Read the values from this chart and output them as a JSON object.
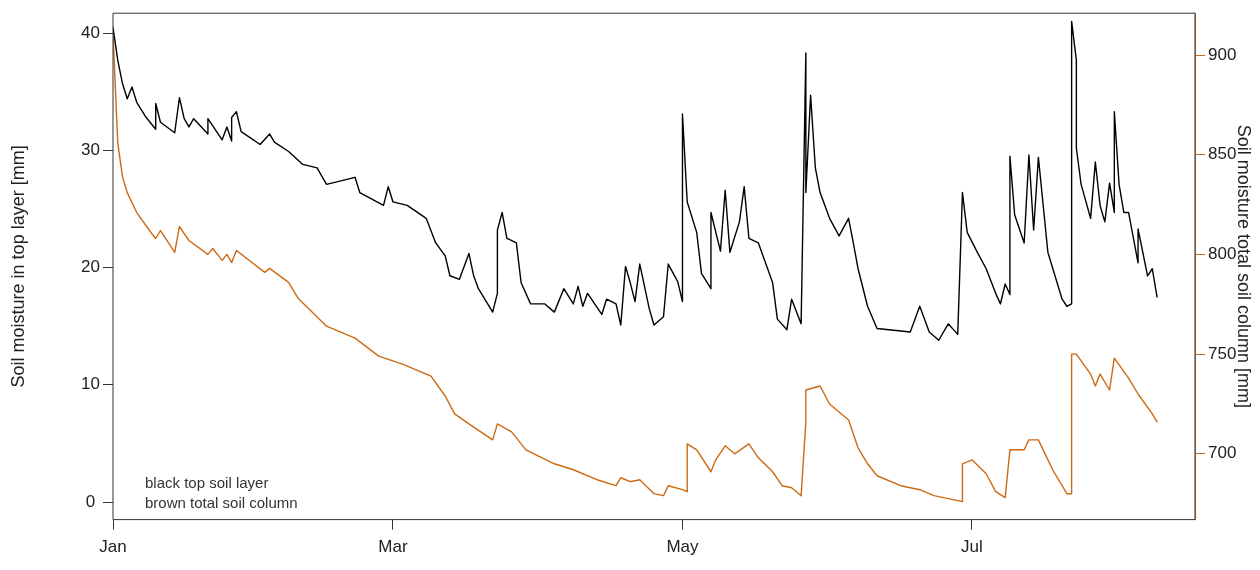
{
  "chart_data": {
    "type": "line",
    "ylabel": "Soil moisture in top layer [mm]",
    "y2label": "Soil moisture total soil column [mm]",
    "xlim": [
      "--01-01",
      "--08-17"
    ],
    "xticks": [
      {
        "value": "--01-01",
        "label": "Jan"
      },
      {
        "value": "--03-01",
        "label": "Mar"
      },
      {
        "value": "--05-01",
        "label": "May"
      },
      {
        "value": "--07-01",
        "label": "Jul"
      }
    ],
    "ylim": [
      -1.5,
      41.7
    ],
    "yticks": [
      0,
      10,
      20,
      30,
      40
    ],
    "y2lim": [
      667,
      921
    ],
    "y2ticks": [
      700,
      750,
      800,
      850,
      900
    ],
    "grid": false,
    "legend": false,
    "marker": "none",
    "line_style": "solid",
    "annotations": [
      "black top soil layer",
      "brown total soil column"
    ],
    "series": [
      {
        "color": "#000000",
        "x": [
          "--01-01",
          "--01-02",
          "--01-03",
          "--01-04",
          "--01-05",
          "--01-06",
          "--01-08",
          "--01-10",
          "--01-10",
          "--01-11",
          "--01-14",
          "--01-15",
          "--01-16",
          "--01-17",
          "--01-18",
          "--01-21",
          "--01-21",
          "--01-24",
          "--01-25",
          "--01-26",
          "--01-26",
          "--01-27",
          "--01-28",
          "--02-01",
          "--02-03",
          "--02-04",
          "--02-07",
          "--02-10",
          "--02-13",
          "--02-15",
          "--02-21",
          "--02-22",
          "--02-27",
          "--02-28",
          "--03-01",
          "--03-04",
          "--03-08",
          "--03-10",
          "--03-12",
          "--03-13",
          "--03-15",
          "--03-17",
          "--03-18",
          "--03-19",
          "--03-22",
          "--03-23",
          "--03-23",
          "--03-24",
          "--03-25",
          "--03-27",
          "--03-28",
          "--03-30",
          "--04-02",
          "--04-04",
          "--04-06",
          "--04-08",
          "--04-09",
          "--04-10",
          "--04-11",
          "--04-14",
          "--04-15",
          "--04-17",
          "--04-18",
          "--04-19",
          "--04-20",
          "--04-21",
          "--04-22",
          "--04-24",
          "--04-25",
          "--04-27",
          "--04-28",
          "--04-30",
          "--05-01",
          "--05-01",
          "--05-02",
          "--05-04",
          "--05-05",
          "--05-07",
          "--05-07",
          "--05-09",
          "--05-10",
          "--05-11",
          "--05-13",
          "--05-14",
          "--05-15",
          "--05-17",
          "--05-20",
          "--05-21",
          "--05-23",
          "--05-24",
          "--05-26",
          "--05-27",
          "--05-27",
          "--05-28",
          "--05-29",
          "--05-30",
          "--06-01",
          "--06-03",
          "--06-05",
          "--06-06",
          "--06-07",
          "--06-09",
          "--06-11",
          "--06-18",
          "--06-20",
          "--06-22",
          "--06-24",
          "--06-26",
          "--06-28",
          "--06-29",
          "--06-30",
          "--07-02",
          "--07-04",
          "--07-06",
          "--07-07",
          "--07-08",
          "--07-09",
          "--07-09",
          "--07-10",
          "--07-12",
          "--07-13",
          "--07-14",
          "--07-15",
          "--07-17",
          "--07-20",
          "--07-21",
          "--07-22",
          "--07-22",
          "--07-23",
          "--07-23",
          "--07-24",
          "--07-26",
          "--07-27",
          "--07-28",
          "--07-29",
          "--07-30",
          "--07-31",
          "--07-31",
          "--08-01",
          "--08-02",
          "--08-03",
          "--08-05",
          "--08-05",
          "--08-07",
          "--08-08",
          "--08-09"
        ],
        "values": [
          40.5,
          37.7,
          35.7,
          34.4,
          35.4,
          34.1,
          32.8,
          31.8,
          34.0,
          32.4,
          31.5,
          34.5,
          32.7,
          32.0,
          32.7,
          31.4,
          32.7,
          30.9,
          32.0,
          30.8,
          32.8,
          33.3,
          31.6,
          30.5,
          31.4,
          30.7,
          29.9,
          28.8,
          28.5,
          27.1,
          27.7,
          26.4,
          25.3,
          26.9,
          25.6,
          25.3,
          24.2,
          22.1,
          21.0,
          19.3,
          19.0,
          21.2,
          19.3,
          18.2,
          16.2,
          17.8,
          23.2,
          24.7,
          22.5,
          22.1,
          18.7,
          16.9,
          16.9,
          16.2,
          18.2,
          16.9,
          18.4,
          16.7,
          17.8,
          16.0,
          17.3,
          16.9,
          15.1,
          20.1,
          18.7,
          17.1,
          20.3,
          16.5,
          15.1,
          15.8,
          20.3,
          18.8,
          17.1,
          33.1,
          25.6,
          23.0,
          19.5,
          18.2,
          24.7,
          21.4,
          26.6,
          21.3,
          23.9,
          26.9,
          22.5,
          22.1,
          18.7,
          15.6,
          14.7,
          17.3,
          15.2,
          38.3,
          26.4,
          34.7,
          28.5,
          26.4,
          24.2,
          22.7,
          24.2,
          22.1,
          19.9,
          16.7,
          14.8,
          14.5,
          16.7,
          14.5,
          13.8,
          15.2,
          14.3,
          26.4,
          23.0,
          21.4,
          19.9,
          17.8,
          16.9,
          18.6,
          17.7,
          29.5,
          24.5,
          22.1,
          29.6,
          23.2,
          29.4,
          21.3,
          17.3,
          16.7,
          16.9,
          41.0,
          37.7,
          30.2,
          27.1,
          24.2,
          29.0,
          25.3,
          23.9,
          27.2,
          24.7,
          33.3,
          27.1,
          24.7,
          24.7,
          20.4,
          23.3,
          19.3,
          19.9,
          17.5
        ]
      },
      {
        "color": "#cc6a14",
        "axis": "y2",
        "x": [
          "--01-01",
          "--01-02",
          "--01-03",
          "--01-04",
          "--01-06",
          "--01-09",
          "--01-10",
          "--01-11",
          "--01-14",
          "--01-15",
          "--01-17",
          "--01-21",
          "--01-22",
          "--01-24",
          "--01-25",
          "--01-26",
          "--01-27",
          "--02-02",
          "--02-03",
          "--02-07",
          "--02-09",
          "--02-15",
          "--02-21",
          "--02-26",
          "--03-03",
          "--03-09",
          "--03-12",
          "--03-14",
          "--03-17",
          "--03-22",
          "--03-23",
          "--03-26",
          "--03-29",
          "--04-04",
          "--04-08",
          "--04-13",
          "--04-17",
          "--04-18",
          "--04-20",
          "--04-22",
          "--04-25",
          "--04-27",
          "--04-28",
          "--05-01",
          "--05-02",
          "--05-02",
          "--05-04",
          "--05-07",
          "--05-08",
          "--05-10",
          "--05-12",
          "--05-15",
          "--05-17",
          "--05-20",
          "--05-22",
          "--05-24",
          "--05-26",
          "--05-27",
          "--05-27",
          "--05-30",
          "--06-01",
          "--06-05",
          "--06-07",
          "--06-09",
          "--06-11",
          "--06-16",
          "--06-20",
          "--06-23",
          "--06-29",
          "--06-29",
          "--07-01",
          "--07-04",
          "--07-06",
          "--07-08",
          "--07-09",
          "--07-12",
          "--07-13",
          "--07-15",
          "--07-18",
          "--07-21",
          "--07-22",
          "--07-22",
          "--07-23",
          "--07-26",
          "--07-27",
          "--07-28",
          "--07-30",
          "--07-31",
          "--08-03",
          "--08-05",
          "--08-08",
          "--08-09"
        ],
        "values": [
          911,
          856,
          839,
          831,
          821,
          811,
          808,
          812,
          801,
          814,
          807,
          800,
          803,
          797,
          800,
          796,
          802,
          791,
          793,
          786,
          778,
          764,
          758,
          749,
          745,
          739,
          729,
          720,
          715,
          707,
          715,
          711,
          702,
          695,
          692,
          687,
          684,
          688,
          686,
          687,
          680,
          679,
          684,
          682,
          681,
          705,
          702,
          691,
          697,
          704,
          700,
          705,
          698,
          691,
          684,
          683,
          679,
          716,
          732,
          734,
          725,
          717,
          703,
          695,
          689,
          684,
          682,
          679,
          676,
          695,
          697,
          690,
          681,
          678,
          702,
          702,
          707,
          707,
          692,
          680,
          680,
          750,
          750,
          740,
          734,
          740,
          732,
          748,
          738,
          730,
          720,
          716
        ]
      }
    ]
  }
}
